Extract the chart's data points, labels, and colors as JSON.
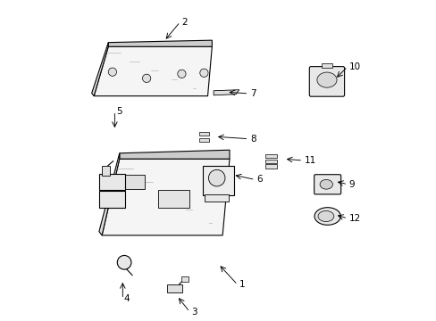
{
  "bg_color": "#ffffff",
  "line_color": "#000000",
  "parts_labels": [
    [
      1,
      0.5,
      0.175,
      0.56,
      0.11
    ],
    [
      2,
      0.33,
      0.875,
      0.38,
      0.935
    ],
    [
      3,
      0.37,
      0.075,
      0.41,
      0.025
    ],
    [
      4,
      0.2,
      0.125,
      0.2,
      0.065
    ],
    [
      5,
      0.175,
      0.595,
      0.175,
      0.655
    ],
    [
      6,
      0.545,
      0.455,
      0.615,
      0.44
    ],
    [
      7,
      0.525,
      0.715,
      0.595,
      0.71
    ],
    [
      8,
      0.49,
      0.575,
      0.595,
      0.568
    ],
    [
      9,
      0.865,
      0.435,
      0.905,
      0.425
    ],
    [
      10,
      0.865,
      0.755,
      0.905,
      0.795
    ],
    [
      11,
      0.705,
      0.505,
      0.765,
      0.5
    ],
    [
      12,
      0.865,
      0.33,
      0.905,
      0.318
    ]
  ]
}
